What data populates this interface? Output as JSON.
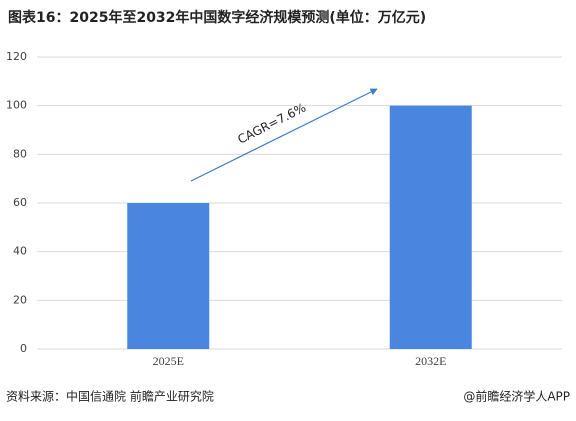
{
  "chart_data": {
    "type": "bar",
    "title": "图表16：2025年至2032年中国数字经济规模预测(单位：万亿元)",
    "categories": [
      "2025E",
      "2032E"
    ],
    "values": [
      60,
      100
    ],
    "color": "#4a86e0",
    "ylim": [
      0,
      120
    ],
    "yticks": [
      0,
      20,
      40,
      60,
      80,
      100,
      120
    ],
    "grid": true,
    "annotation": "CAGR=7.6%",
    "source": "资料来源：中国信通院 前瞻产业研究院",
    "credit": "@前瞻经济学人APP"
  }
}
